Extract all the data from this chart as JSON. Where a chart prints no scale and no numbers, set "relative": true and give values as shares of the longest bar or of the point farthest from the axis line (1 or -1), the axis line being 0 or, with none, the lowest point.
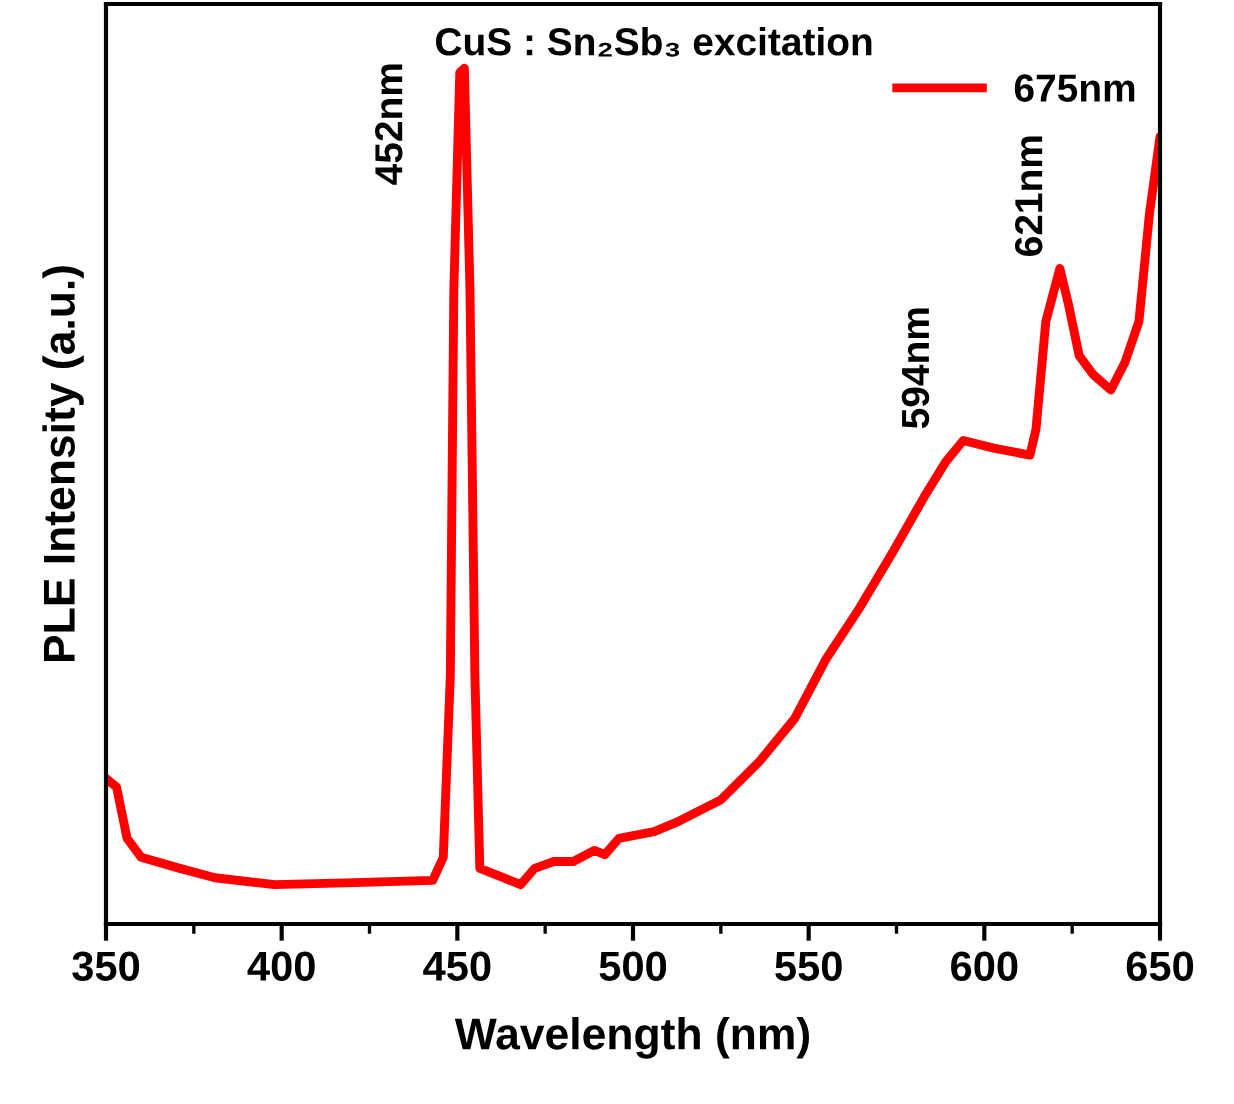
{
  "chart_data": {
    "type": "line",
    "title": "CuS : Sn₂Sb₃ excitation",
    "xlabel": "Wavelength (nm)",
    "ylabel": "PLE Intensity (a.u.)",
    "relative": true,
    "xlim": [
      350,
      650
    ],
    "xticks": [
      350,
      {
        "value": 375,
        "label": null
      },
      400,
      {
        "value": 425,
        "label": null
      },
      450,
      {
        "value": 475,
        "label": null
      },
      500,
      {
        "value": 525,
        "label": null
      },
      550,
      {
        "value": 575,
        "label": null
      },
      600,
      {
        "value": 625,
        "label": null
      },
      650
    ],
    "legend": "top right",
    "grid": false,
    "marker": "none",
    "line_style": "solid",
    "series": [
      {
        "name": "675nm",
        "color": "#ff0000",
        "x": [
          350,
          353,
          356,
          360,
          371,
          381,
          398,
          418,
          443,
          446,
          448,
          449,
          450.7,
          452,
          453.6,
          455,
          456.4,
          462,
          468,
          472,
          477.5,
          483,
          489,
          492,
          496,
          506,
          513,
          525,
          536,
          546,
          555,
          564.6,
          574,
          583,
          589,
          594,
          602.7,
          613,
          614.7,
          617.5,
          621.5,
          624,
          627,
          631,
          636,
          640,
          644,
          647,
          650
        ],
        "values": [
          0.17,
          0.16,
          0.1,
          0.078,
          0.065,
          0.054,
          0.046,
          0.048,
          0.051,
          0.078,
          0.29,
          0.74,
          0.995,
          1.0,
          0.74,
          0.29,
          0.065,
          0.056,
          0.046,
          0.065,
          0.073,
          0.073,
          0.086,
          0.081,
          0.1,
          0.108,
          0.12,
          0.145,
          0.19,
          0.24,
          0.31,
          0.37,
          0.435,
          0.5,
          0.54,
          0.565,
          0.556,
          0.548,
          0.578,
          0.704,
          0.766,
          0.723,
          0.664,
          0.642,
          0.624,
          0.656,
          0.704,
          0.83,
          0.92
        ]
      }
    ],
    "annotations": [
      {
        "text": "452nm",
        "x": 452,
        "y": 1.0
      },
      {
        "text": "594nm",
        "x": 594,
        "y": 0.565
      },
      {
        "text": "621nm",
        "x": 621.5,
        "y": 0.766
      }
    ]
  }
}
